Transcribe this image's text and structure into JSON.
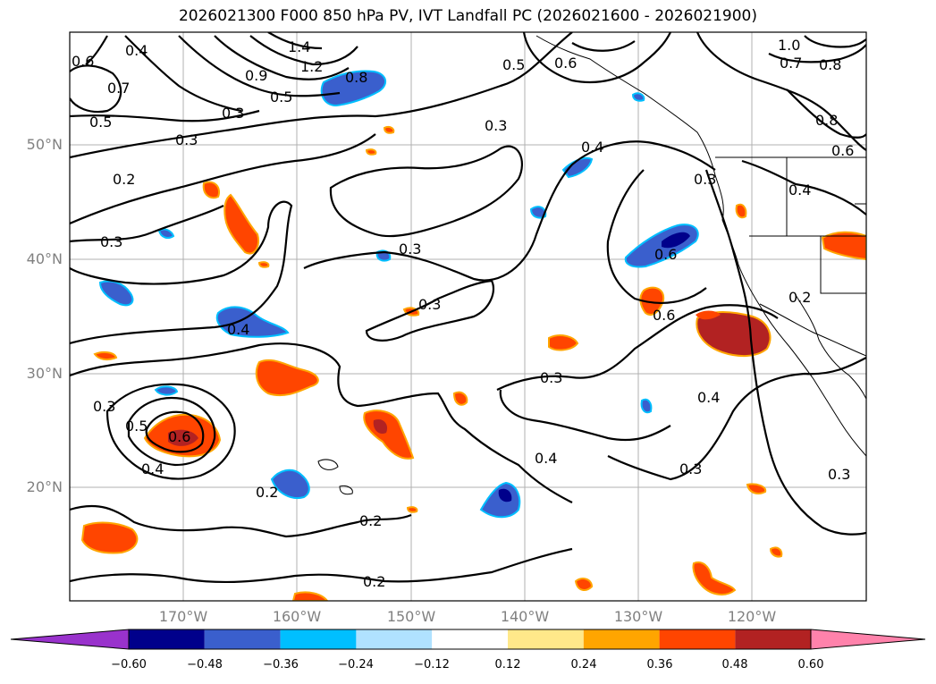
{
  "title": "2026021300 F000 850 hPa PV, IVT Landfall PC (2026021600 - 2026021900)",
  "lat_labels": [
    "50°N",
    "40°N",
    "30°N",
    "20°N"
  ],
  "lon_labels": [
    "170°W",
    "160°W",
    "150°W",
    "140°W",
    "130°W",
    "120°W"
  ],
  "colorbar": {
    "ticks": [
      "−0.60",
      "−0.48",
      "−0.36",
      "−0.24",
      "−0.12",
      "0.12",
      "0.24",
      "0.36",
      "0.48",
      "0.60"
    ],
    "colors": [
      "#9932cc",
      "#00008b",
      "#3a5fcd",
      "#00bfff",
      "#b0e2ff",
      "#ffffff",
      "#ffe88a",
      "#ffa500",
      "#ff4500",
      "#b22222",
      "#ff82ab"
    ]
  },
  "contour_labels": [
    "0.4",
    "0.6",
    "0.7",
    "0.5",
    "1.4",
    "1.2",
    "0.9",
    "0.5",
    "0.8",
    "0.3",
    "0.5",
    "0.3",
    "0.3",
    "0.6",
    "1.0",
    "0.7",
    "0.8",
    "0.8",
    "0.6",
    "0.3",
    "0.2",
    "0.4",
    "0.3",
    "0.4",
    "0.3",
    "0.3",
    "0.6",
    "0.6",
    "0.2",
    "0.4",
    "0.3",
    "0.3",
    "0.4",
    "0.3",
    "0.5",
    "0.6",
    "0.4",
    "0.2",
    "0.4",
    "0.3",
    "0.3",
    "0.2",
    "0.2"
  ]
}
